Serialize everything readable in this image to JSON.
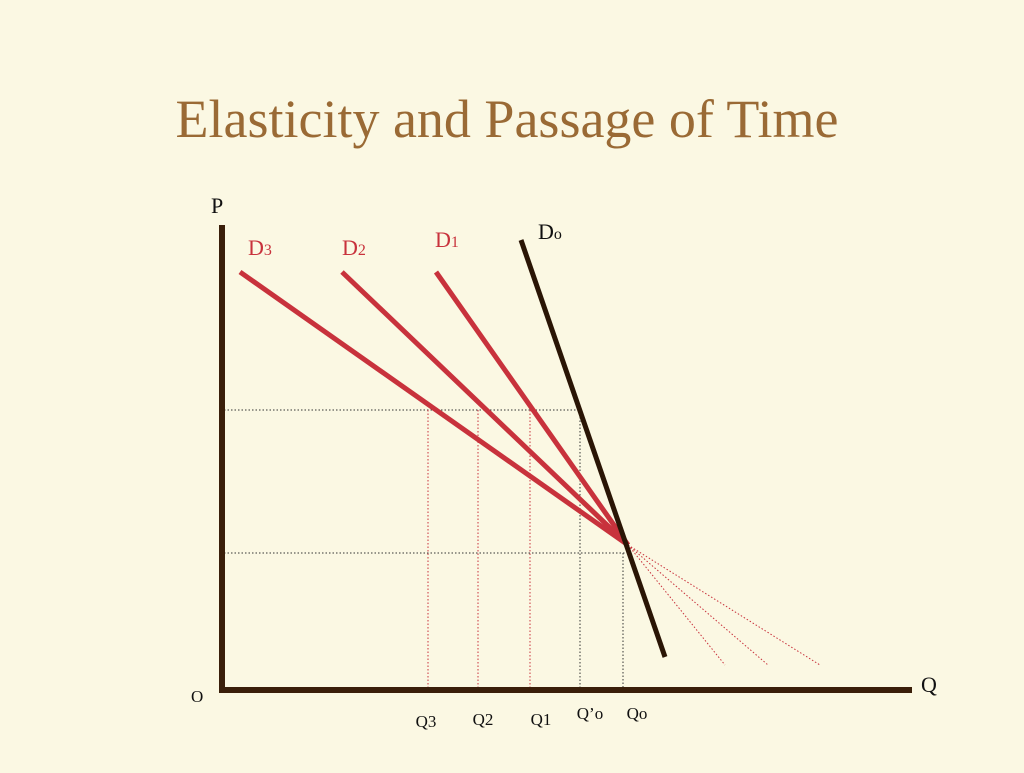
{
  "title": "Elasticity and Passage of Time",
  "axes": {
    "price": "P",
    "quantity": "Q",
    "origin": "O"
  },
  "curves": [
    {
      "base": "D",
      "sub": "3"
    },
    {
      "base": "D",
      "sub": "2"
    },
    {
      "base": "D",
      "sub": "1"
    },
    {
      "base": "D",
      "sub": "o"
    }
  ],
  "quantities": [
    "Q3",
    "Q2",
    "Q1",
    "Q’o",
    "Qo"
  ]
}
